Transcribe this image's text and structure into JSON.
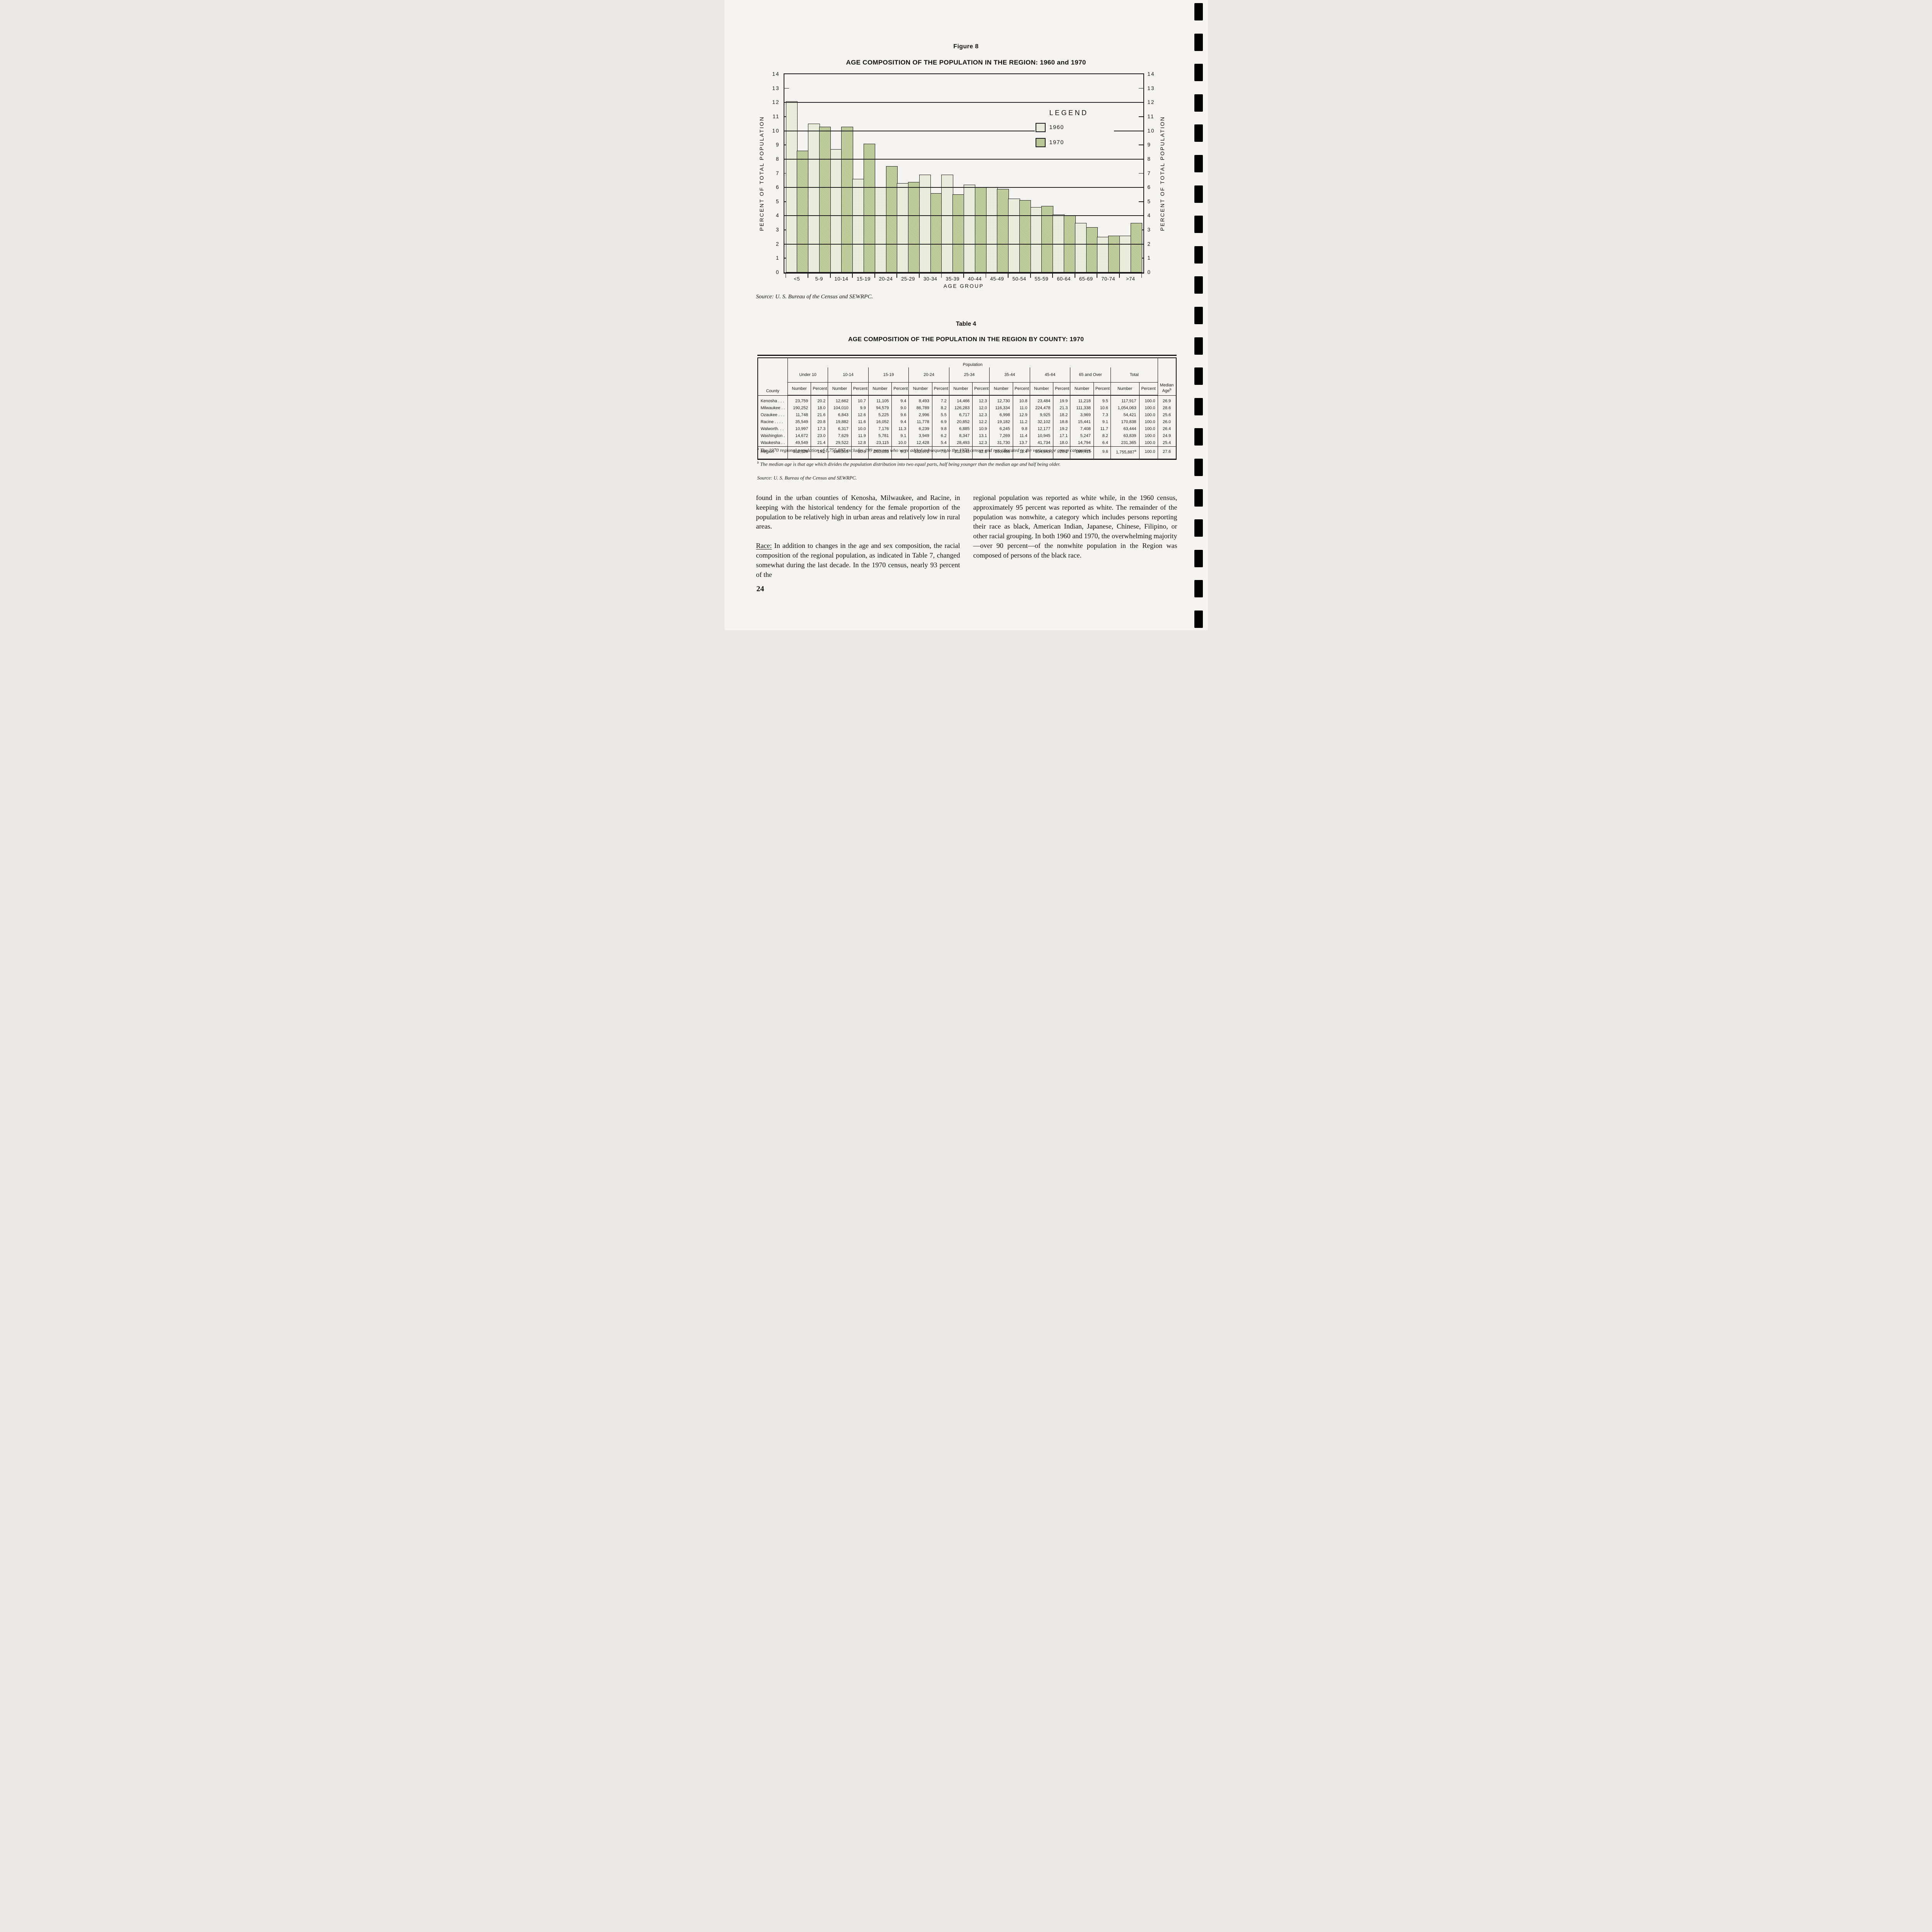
{
  "page": {
    "number": "24"
  },
  "figure": {
    "label": "Figure 8",
    "title": "AGE COMPOSITION OF THE POPULATION IN THE REGION: 1960 and 1970",
    "source": "Source:  U. S. Bureau of the Census and SEWRPC.",
    "legend_title": "LEGEND"
  },
  "chart_data": {
    "type": "bar",
    "title": "AGE COMPOSITION OF THE POPULATION IN THE REGION: 1960 and 1970",
    "xlabel": "AGE GROUP",
    "ylabel": "PERCENT OF TOTAL POPULATION",
    "ylabel_right": "PERCENT OF TOTAL POPULATION",
    "ylim": [
      0,
      14
    ],
    "ytick_labels": [
      "0",
      "1",
      "2",
      "3",
      "4",
      "5",
      "6",
      "7",
      "8",
      "9",
      "10",
      "11",
      "12",
      "13",
      "14"
    ],
    "major_gridlines_at": [
      2,
      4,
      6,
      8,
      10,
      12
    ],
    "minor_ticks_at": [
      1,
      3,
      5,
      7,
      9,
      11,
      13
    ],
    "grid": "horizontal major lines, minor inner ticks both sides",
    "legend_position": "upper right inside plot",
    "categories": [
      "<5",
      "5-9",
      "10-14",
      "15-19",
      "20-24",
      "25-29",
      "30-34",
      "35-39",
      "40-44",
      "45-49",
      "50-54",
      "55-59",
      "60-64",
      "65-69",
      "70-74",
      ">74"
    ],
    "series": [
      {
        "name": "1960",
        "color": "#eaeddc",
        "values": [
          12.1,
          10.5,
          8.7,
          6.6,
          6.0,
          6.3,
          6.9,
          6.9,
          6.2,
          6.0,
          5.2,
          4.6,
          4.1,
          3.5,
          2.5,
          2.6
        ]
      },
      {
        "name": "1970",
        "color": "#b9c795",
        "values": [
          8.6,
          10.3,
          10.3,
          9.1,
          7.5,
          6.4,
          5.6,
          5.5,
          6.0,
          5.9,
          5.1,
          4.7,
          4.0,
          3.2,
          2.6,
          3.5
        ]
      }
    ]
  },
  "table": {
    "label": "Table 4",
    "title": "AGE COMPOSITION OF THE POPULATION IN THE REGION BY COUNTY: 1970",
    "spanner": "Population",
    "county_header": "County",
    "median_header": "Median Age^b",
    "groups": [
      "Under 10",
      "10-14",
      "15-19",
      "20-24",
      "25-34",
      "35-44",
      "45-64",
      "65 and Over",
      "Total"
    ],
    "sub_headers": [
      "Number",
      "Percent"
    ],
    "rows": [
      {
        "name": "Kenosha . . .",
        "cells": [
          "23,759",
          "20.2",
          "12,662",
          "10.7",
          "11,105",
          "9.4",
          "8,493",
          "7.2",
          "14,466",
          "12.3",
          "12,730",
          "10.8",
          "23,484",
          "19.9",
          "11,218",
          "9.5",
          "117,917",
          "100.0",
          "26.9"
        ]
      },
      {
        "name": "Milwaukee . .",
        "cells": [
          "190,252",
          "18.0",
          "104,010",
          "9.9",
          "94,579",
          "9.0",
          "86,789",
          "8.2",
          "126,283",
          "12.0",
          "116,334",
          "11.0",
          "224,478",
          "21.3",
          "111,338",
          "10.6",
          "1,054,063",
          "100.0",
          "28.6"
        ]
      },
      {
        "name": "Ozaukee . . .",
        "cells": [
          "11,748",
          "21.6",
          "6,843",
          "12.6",
          "5,225",
          "9.6",
          "2,996",
          "5.5",
          "6,717",
          "12.3",
          "6,998",
          "12.9",
          "9,925",
          "18.2",
          "3,969",
          "7.3",
          "54,421",
          "100.0",
          "25.6"
        ]
      },
      {
        "name": "Racine . . . .",
        "cells": [
          "35,549",
          "20.8",
          "19,882",
          "11.6",
          "16,052",
          "9.4",
          "11,778",
          "6.9",
          "20,852",
          "12.2",
          "19,182",
          "11.2",
          "32,102",
          "18.8",
          "15,441",
          "9.1",
          "170,838",
          "100.0",
          "26.0"
        ]
      },
      {
        "name": "Walworth. . .",
        "cells": [
          "10,997",
          "17.3",
          "6,317",
          "10.0",
          "7,176",
          "11.3",
          "6,239",
          "9.8",
          "6,885",
          "10.9",
          "6,245",
          "9.8",
          "12,177",
          "19.2",
          "7,408",
          "11.7",
          "63,444",
          "100.0",
          "26.4"
        ]
      },
      {
        "name": "Washington .",
        "cells": [
          "14,672",
          "23.0",
          "7,629",
          "11.9",
          "5,781",
          "9.1",
          "3,949",
          "6.2",
          "8,347",
          "13.1",
          "7,269",
          "11.4",
          "10,945",
          "17.1",
          "5,247",
          "8.2",
          "63,839",
          "100.0",
          "24.9"
        ]
      },
      {
        "name": "Waukesha . .",
        "cells": [
          "49,549",
          "21.4",
          "29,522",
          "12.8",
          "23,115",
          "10.0",
          "12,428",
          "5.4",
          "28,493",
          "12.3",
          "31,730",
          "13.7",
          "41,734",
          "18.0",
          "14,794",
          "6.4",
          "231,365",
          "100.0",
          "25.4"
        ]
      }
    ],
    "region_row": {
      "name": "Region",
      "cells": [
        "336,526",
        "19.2",
        "186,865",
        "10.6",
        "163,033",
        "9.3",
        "132,672",
        "7.6",
        "212,043",
        "12.1",
        "200,488",
        "11.4",
        "354,845",
        "20.2",
        "169,415",
        "9.6",
        "1,755,887^a",
        "100.0",
        "27.6"
      ]
    },
    "footnote_a_mark": "a",
    "footnote_a": "The 1970 regional population of 1,755,887 excludes 199 persons who were added subsequent to the 1970 census and not allocated to the various age group categories.",
    "footnote_b_mark": "b",
    "footnote_b": "The median age is that age which divides the population distribution into two equal parts, half being younger than the median age and half being older.",
    "source": "Source:  U. S. Bureau of the Census and SEWRPC."
  },
  "body": {
    "col1_para1": "found in the urban counties of Kenosha, Milwaukee, and Racine, in keeping with the historical tendency for the female proportion of the population to be relatively high in urban areas and relatively low in rural areas.",
    "col1_para2_label": "Race:",
    "col1_para2_rest": " In addition to changes in the age and sex composition, the racial composition of the regional population, as indicated in Table 7, changed somewhat during the last decade. In the 1970 census, nearly 93 percent of the",
    "col2_para": "regional population was reported as white while, in the 1960 census, approximately 95 percent was reported as white. The remainder of the population was nonwhite, a category which includes persons reporting their race as black, American Indian, Japanese, Chinese, Filipino, or other racial grouping. In both 1960 and 1970, the overwhelming majority—over 90 percent—of the nonwhite population in the Region was composed of persons of the black race.",
    "edge_mark_count": 21
  }
}
